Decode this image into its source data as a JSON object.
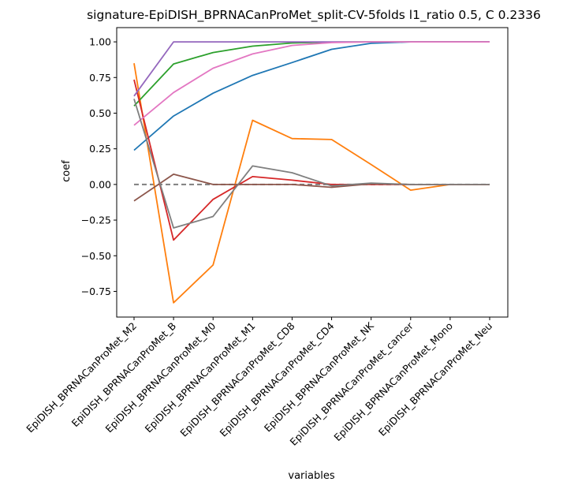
{
  "chart_data": {
    "type": "line",
    "title": "signature-EpiDISH_BPRNACanProMet_split-CV-5folds l1_ratio 0.5, C 0.2336",
    "xlabel": "variables",
    "ylabel": "coef",
    "categories": [
      "EpiDISH_BPRNACanProMet_M2",
      "EpiDISH_BPRNACanProMet_B",
      "EpiDISH_BPRNACanProMet_M0",
      "EpiDISH_BPRNACanProMet_M1",
      "EpiDISH_BPRNACanProMet_CD8",
      "EpiDISH_BPRNACanProMet_CD4",
      "EpiDISH_BPRNACanProMet_NK",
      "EpiDISH_BPRNACanProMet_cancer",
      "EpiDISH_BPRNACanProMet_Mono",
      "EpiDISH_BPRNACanProMet_Neu"
    ],
    "ylim": [
      -0.93,
      1.1
    ],
    "yticks": [
      -0.75,
      -0.5,
      -0.25,
      0.0,
      0.25,
      0.5,
      0.75,
      1.0
    ],
    "ytick_labels": [
      "−0.75",
      "−0.50",
      "−0.25",
      "0.00",
      "0.25",
      "0.50",
      "0.75",
      "1.00"
    ],
    "grid": false,
    "series": [
      {
        "color": "#1f77b4",
        "values": [
          0.24,
          0.48,
          0.64,
          0.765,
          0.855,
          0.948,
          0.99,
          1.0,
          1.0,
          1.0
        ]
      },
      {
        "color": "#ff7f0e",
        "values": [
          0.85,
          -0.83,
          -0.565,
          0.45,
          0.322,
          0.315,
          0.14,
          -0.04,
          0.0,
          0.0
        ]
      },
      {
        "color": "#2ca02c",
        "values": [
          0.55,
          0.845,
          0.925,
          0.97,
          0.992,
          0.998,
          1.0,
          1.0,
          1.0,
          1.0
        ]
      },
      {
        "color": "#d62728",
        "values": [
          0.735,
          -0.39,
          -0.105,
          0.055,
          0.03,
          0.0,
          0.0,
          0.0,
          0.0,
          0.0
        ]
      },
      {
        "color": "#9467bd",
        "values": [
          0.62,
          1.0,
          1.0,
          1.0,
          1.0,
          1.0,
          1.0,
          1.0,
          1.0,
          1.0
        ]
      },
      {
        "color": "#8c564b",
        "values": [
          -0.115,
          0.072,
          0.0,
          0.0,
          0.0,
          -0.02,
          0.005,
          0.0,
          0.0,
          0.0
        ]
      },
      {
        "color": "#e377c2",
        "values": [
          0.415,
          0.645,
          0.815,
          0.915,
          0.975,
          0.995,
          1.0,
          1.0,
          1.0,
          1.0
        ]
      },
      {
        "color": "#7f7f7f",
        "values": [
          0.6,
          -0.305,
          -0.225,
          0.13,
          0.082,
          -0.01,
          0.01,
          0.0,
          0.0,
          0.0
        ]
      }
    ],
    "baseline": {
      "value": 0.0,
      "color": "#7f7f7f",
      "dashed": true
    }
  }
}
